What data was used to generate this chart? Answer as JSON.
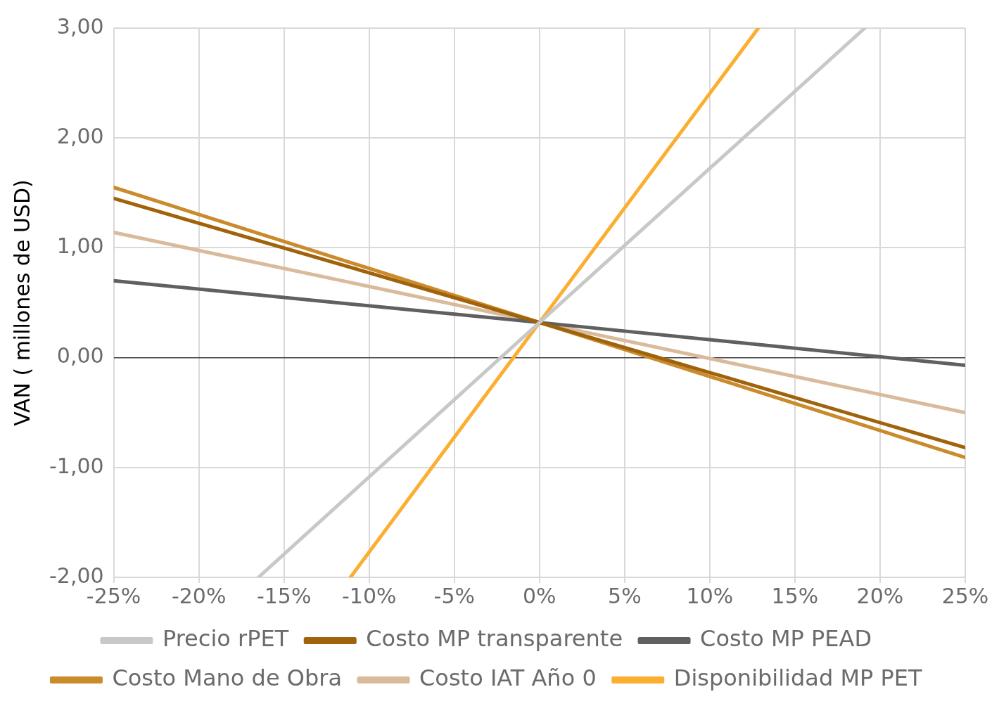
{
  "chart_data": {
    "type": "line",
    "ylabel": "VAN ( millones de USD)",
    "xlim": [
      -25,
      25
    ],
    "xticks": [
      {
        "value": -25,
        "label": "-25%"
      },
      {
        "value": -20,
        "label": "-20%"
      },
      {
        "value": -15,
        "label": "-15%"
      },
      {
        "value": -10,
        "label": "-10%"
      },
      {
        "value": -5,
        "label": "-5%"
      },
      {
        "value": 0,
        "label": "0%"
      },
      {
        "value": 5,
        "label": "5%"
      },
      {
        "value": 10,
        "label": "10%"
      },
      {
        "value": 15,
        "label": "15%"
      },
      {
        "value": 20,
        "label": "20%"
      },
      {
        "value": 25,
        "label": "25%"
      }
    ],
    "ylim": [
      -2,
      3
    ],
    "yticks": [
      {
        "value": -2,
        "label": "-2,00"
      },
      {
        "value": -1,
        "label": "-1,00"
      },
      {
        "value": 0,
        "label": "0,00"
      },
      {
        "value": 1,
        "label": "1,00"
      },
      {
        "value": 2,
        "label": "2,00"
      },
      {
        "value": 3,
        "label": "3,00"
      }
    ],
    "grid": true,
    "legend": "bottom",
    "marker": "none",
    "line_style": "solid",
    "series": [
      {
        "name": "Precio rPET",
        "color": "#c8c8c8",
        "x": [
          -16.5,
          0,
          19.1
        ],
        "values": [
          -2,
          0.32,
          3
        ]
      },
      {
        "name": "Costo MP transparente",
        "color": "#a0620a",
        "x": [
          -25,
          0,
          25
        ],
        "values": [
          1.45,
          0.32,
          -0.82
        ]
      },
      {
        "name": "Costo MP PEAD",
        "color": "#606060",
        "x": [
          -25,
          0,
          25
        ],
        "values": [
          0.7,
          0.32,
          -0.07
        ]
      },
      {
        "name": "Costo Mano de Obra",
        "color": "#c98b2c",
        "x": [
          -25,
          0,
          25
        ],
        "values": [
          1.55,
          0.32,
          -0.91
        ]
      },
      {
        "name": "Costo IAT Año 0",
        "color": "#d9bb9b",
        "x": [
          -25,
          0,
          25
        ],
        "values": [
          1.14,
          0.32,
          -0.5
        ]
      },
      {
        "name": "Disponibilidad MP PET",
        "color": "#fbae30",
        "x": [
          -11.1,
          0,
          12.85
        ],
        "values": [
          -2,
          0.32,
          3
        ]
      }
    ]
  }
}
